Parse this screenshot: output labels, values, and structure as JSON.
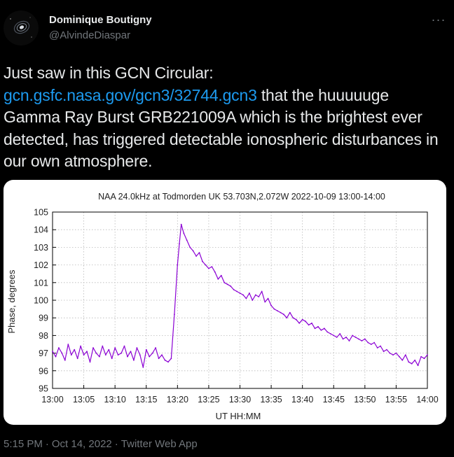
{
  "user": {
    "display_name": "Dominique Boutigny",
    "handle": "@AlvindeDiaspar",
    "avatar_icon": "galaxy-avatar"
  },
  "more_label": "···",
  "tweet": {
    "text_part1": "Just saw in this GCN Circular: ",
    "link": "gcn.gsfc.nasa.gov/gcn3/32744.gcn3",
    "text_part2": " that the huuuuuge Gamma Ray Burst GRB221009A which is the brightest ever detected, has triggered detectable ionospheric disturbances in our own atmosphere."
  },
  "footer": {
    "time": "5:15 PM",
    "separator": "·",
    "date": "Oct 14, 2022",
    "source": "Twitter Web App"
  },
  "colors": {
    "background": "#000000",
    "link": "#1d9bf0",
    "muted": "#71767b",
    "series": "#8b00d4"
  },
  "chart_data": {
    "type": "line",
    "title": "NAA 24.0kHz at Todmorden UK 53.703N,2.072W  2022-10-09 13:00-14:00",
    "xlabel": "UT HH:MM",
    "ylabel": "Phase, degrees",
    "xlim": [
      0,
      60
    ],
    "ylim": [
      95,
      105
    ],
    "x_ticks": [
      0,
      5,
      10,
      15,
      20,
      25,
      30,
      35,
      40,
      45,
      50,
      55,
      60
    ],
    "x_tick_labels": [
      "13:00",
      "13:05",
      "13:10",
      "13:15",
      "13:20",
      "13:25",
      "13:30",
      "13:35",
      "13:40",
      "13:45",
      "13:50",
      "13:55",
      "14:00"
    ],
    "y_ticks": [
      95,
      96,
      97,
      98,
      99,
      100,
      101,
      102,
      103,
      104,
      105
    ],
    "grid": true,
    "series": [
      {
        "x_unit": "minutes after 13:00 UT",
        "points": [
          [
            0,
            97.1
          ],
          [
            0.5,
            96.8
          ],
          [
            1,
            97.3
          ],
          [
            1.5,
            97.0
          ],
          [
            2,
            96.6
          ],
          [
            2.5,
            97.5
          ],
          [
            3,
            96.9
          ],
          [
            3.5,
            97.2
          ],
          [
            4,
            96.7
          ],
          [
            4.5,
            97.4
          ],
          [
            5,
            96.9
          ],
          [
            5.5,
            97.1
          ],
          [
            6,
            96.5
          ],
          [
            6.5,
            97.3
          ],
          [
            7,
            97.0
          ],
          [
            7.5,
            96.8
          ],
          [
            8,
            97.4
          ],
          [
            8.5,
            96.9
          ],
          [
            9,
            97.2
          ],
          [
            9.5,
            96.7
          ],
          [
            10,
            97.3
          ],
          [
            10.5,
            96.9
          ],
          [
            11,
            97.0
          ],
          [
            11.5,
            97.4
          ],
          [
            12,
            96.8
          ],
          [
            12.5,
            97.1
          ],
          [
            13,
            96.6
          ],
          [
            13.5,
            97.3
          ],
          [
            14,
            96.9
          ],
          [
            14.5,
            96.2
          ],
          [
            15,
            97.2
          ],
          [
            15.5,
            96.8
          ],
          [
            16,
            97.0
          ],
          [
            16.5,
            97.3
          ],
          [
            17,
            96.7
          ],
          [
            17.5,
            96.9
          ],
          [
            18,
            96.6
          ],
          [
            18.5,
            96.5
          ],
          [
            19,
            96.7
          ],
          [
            19.5,
            99.2
          ],
          [
            20,
            102.0
          ],
          [
            20.3,
            103.2
          ],
          [
            20.6,
            104.3
          ],
          [
            21,
            103.8
          ],
          [
            21.5,
            103.4
          ],
          [
            22,
            103.0
          ],
          [
            22.5,
            102.8
          ],
          [
            23,
            102.5
          ],
          [
            23.5,
            102.7
          ],
          [
            24,
            102.2
          ],
          [
            24.5,
            102.0
          ],
          [
            25,
            101.8
          ],
          [
            25.5,
            101.9
          ],
          [
            26,
            101.6
          ],
          [
            26.5,
            101.2
          ],
          [
            27,
            101.4
          ],
          [
            27.5,
            101.0
          ],
          [
            28,
            100.9
          ],
          [
            28.5,
            100.8
          ],
          [
            29,
            100.6
          ],
          [
            29.5,
            100.5
          ],
          [
            30,
            100.4
          ],
          [
            30.5,
            100.3
          ],
          [
            31,
            100.1
          ],
          [
            31.5,
            100.4
          ],
          [
            32,
            100.0
          ],
          [
            32.5,
            100.3
          ],
          [
            33,
            100.2
          ],
          [
            33.5,
            100.5
          ],
          [
            34,
            99.9
          ],
          [
            34.5,
            100.1
          ],
          [
            35,
            99.7
          ],
          [
            35.5,
            99.5
          ],
          [
            36,
            99.4
          ],
          [
            36.5,
            99.3
          ],
          [
            37,
            99.2
          ],
          [
            37.5,
            99.0
          ],
          [
            38,
            99.3
          ],
          [
            38.5,
            99.0
          ],
          [
            39,
            98.9
          ],
          [
            39.5,
            98.7
          ],
          [
            40,
            98.9
          ],
          [
            40.5,
            98.8
          ],
          [
            41,
            98.6
          ],
          [
            41.5,
            98.7
          ],
          [
            42,
            98.4
          ],
          [
            42.5,
            98.5
          ],
          [
            43,
            98.3
          ],
          [
            43.5,
            98.4
          ],
          [
            44,
            98.2
          ],
          [
            44.5,
            98.1
          ],
          [
            45,
            98.0
          ],
          [
            45.5,
            97.9
          ],
          [
            46,
            98.1
          ],
          [
            46.5,
            97.8
          ],
          [
            47,
            97.9
          ],
          [
            47.5,
            97.7
          ],
          [
            48,
            98.0
          ],
          [
            48.5,
            97.9
          ],
          [
            49,
            97.8
          ],
          [
            49.5,
            97.7
          ],
          [
            50,
            97.8
          ],
          [
            50.5,
            97.6
          ],
          [
            51,
            97.5
          ],
          [
            51.5,
            97.6
          ],
          [
            52,
            97.3
          ],
          [
            52.5,
            97.4
          ],
          [
            53,
            97.1
          ],
          [
            53.5,
            97.2
          ],
          [
            54,
            97.0
          ],
          [
            54.5,
            96.9
          ],
          [
            55,
            97.0
          ],
          [
            55.5,
            96.8
          ],
          [
            56,
            96.6
          ],
          [
            56.5,
            96.9
          ],
          [
            57,
            96.5
          ],
          [
            57.5,
            96.4
          ],
          [
            58,
            96.6
          ],
          [
            58.5,
            96.3
          ],
          [
            59,
            96.8
          ],
          [
            59.5,
            96.7
          ],
          [
            60,
            96.9
          ]
        ]
      }
    ]
  }
}
